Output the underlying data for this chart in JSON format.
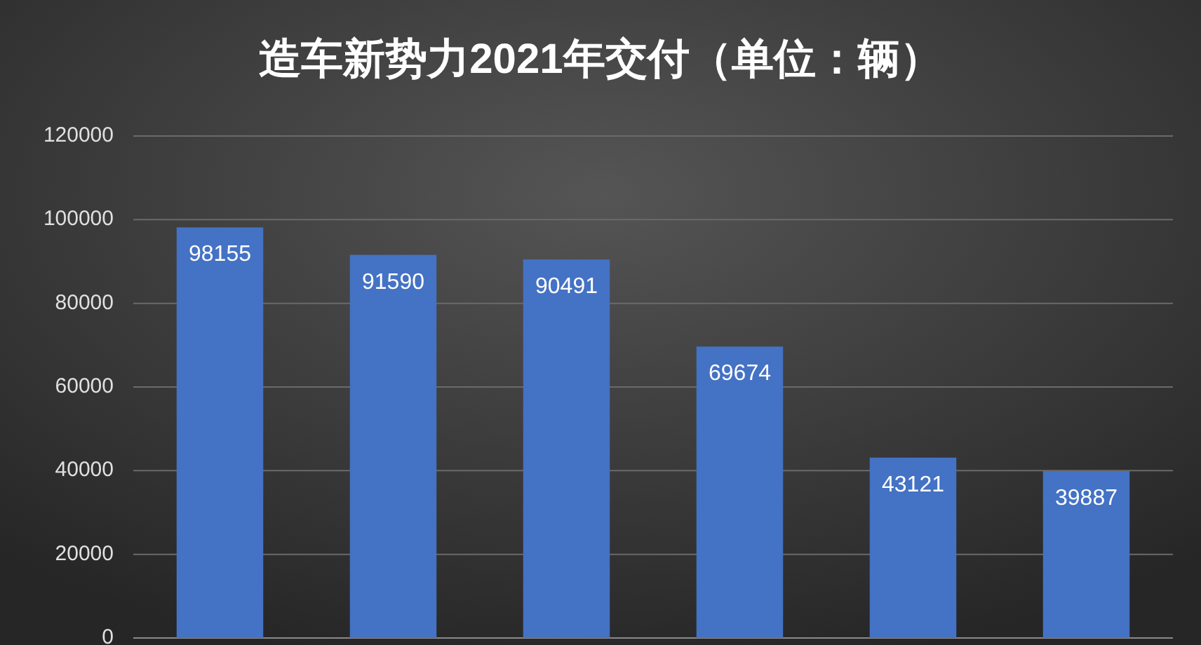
{
  "chart_data": {
    "type": "bar",
    "title": "造车新势力2021年交付（单位：辆）",
    "categories": [
      null,
      null,
      null,
      null,
      null,
      null
    ],
    "values": [
      98155,
      91590,
      90491,
      69674,
      43121,
      39887
    ],
    "color": "#4472c4",
    "ylim": [
      0,
      120000
    ],
    "yticks": [
      0,
      20000,
      40000,
      60000,
      80000,
      100000,
      120000
    ],
    "grid": "y",
    "data_labels": true
  }
}
